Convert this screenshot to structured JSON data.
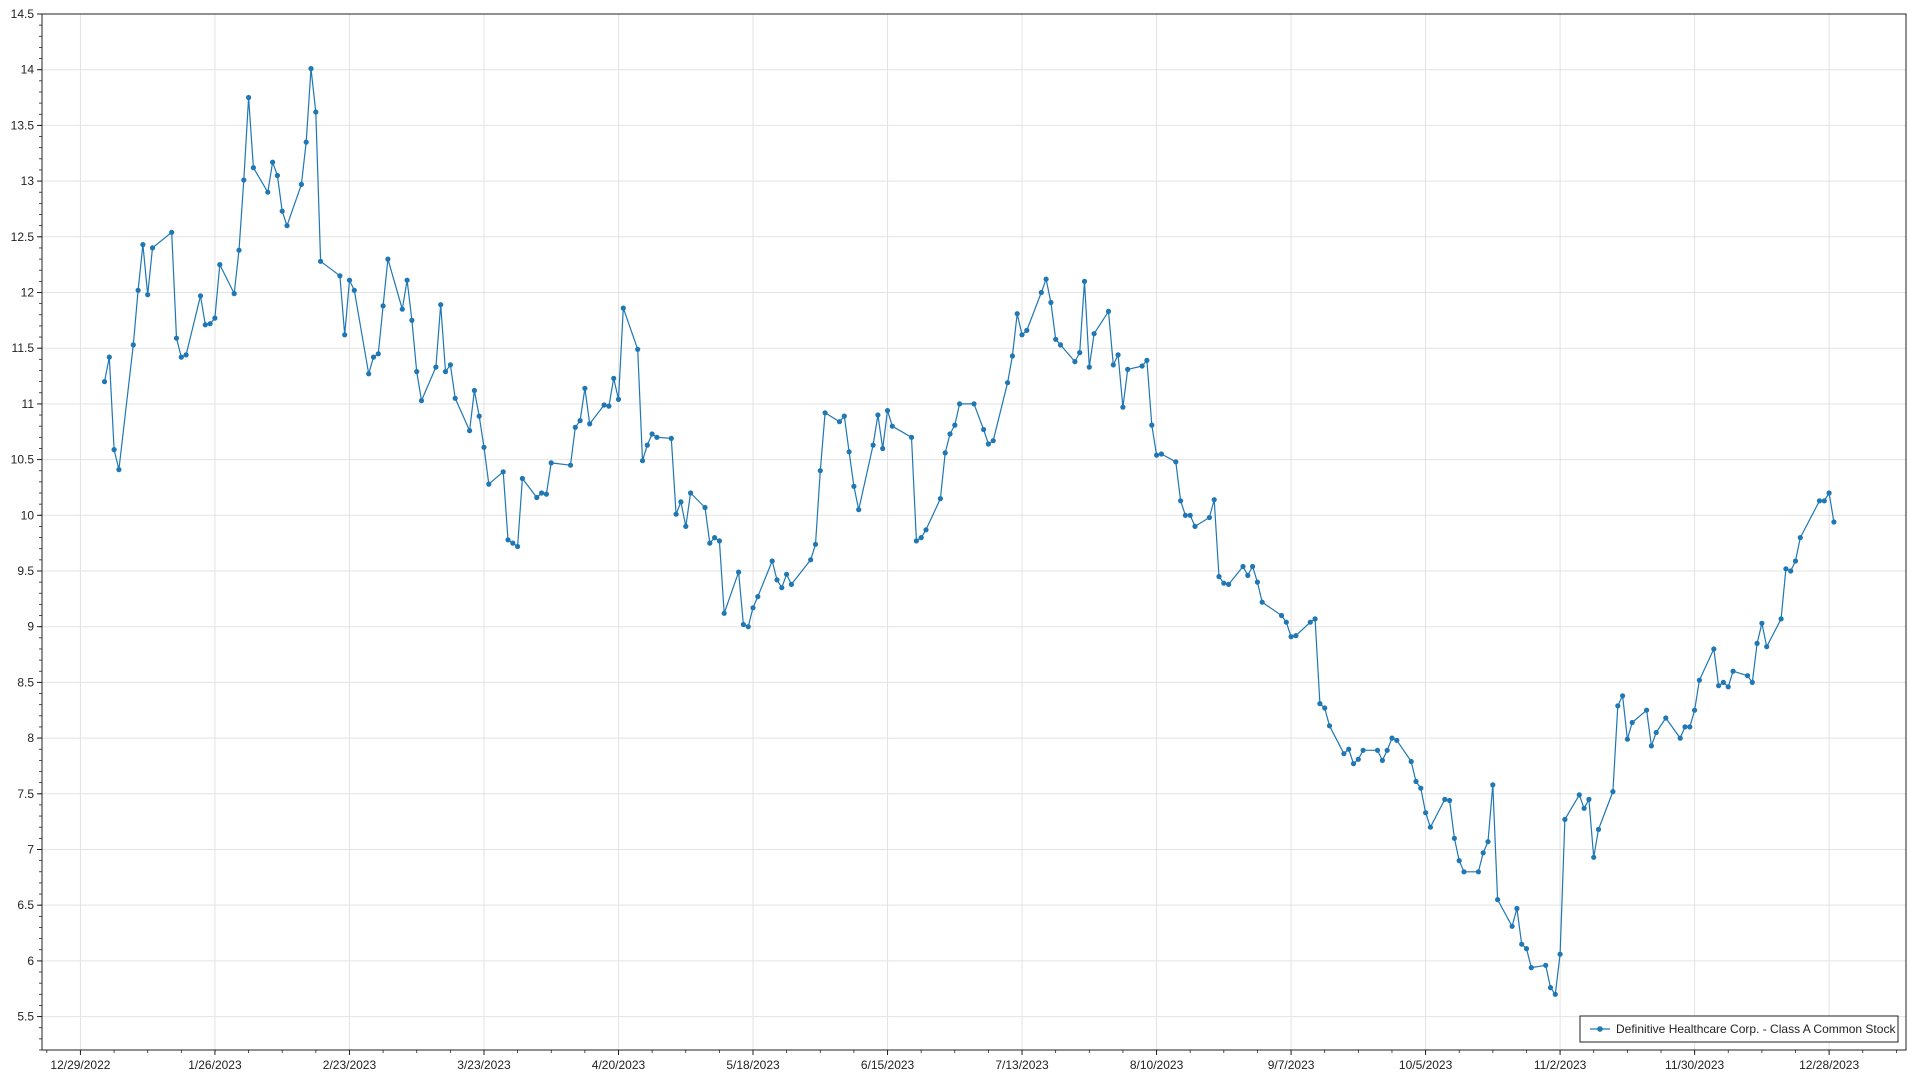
{
  "colors": {
    "series": "#1f77b4",
    "grid": "#e3e3e3",
    "axis": "#222222",
    "background": "#ffffff"
  },
  "chart_data": {
    "type": "line",
    "title": "",
    "xlabel": "",
    "ylabel": "",
    "grid": true,
    "legend_placement": "bottom-right",
    "markers": true,
    "xlim": [
      "2022-12-21",
      "2024-01-13"
    ],
    "ylim": [
      5.2,
      14.5
    ],
    "x_ticks": [
      "2022-12-29",
      "2023-01-26",
      "2023-02-23",
      "2023-03-23",
      "2023-04-20",
      "2023-05-18",
      "2023-06-15",
      "2023-07-13",
      "2023-08-10",
      "2023-09-07",
      "2023-10-05",
      "2023-11-02",
      "2023-11-30",
      "2023-12-28"
    ],
    "x_tick_labels": [
      "12/29/2022",
      "1/26/2023",
      "2/23/2023",
      "3/23/2023",
      "4/20/2023",
      "5/18/2023",
      "6/15/2023",
      "7/13/2023",
      "8/10/2023",
      "9/7/2023",
      "10/5/2023",
      "11/2/2023",
      "11/30/2023",
      "12/28/2023"
    ],
    "y_ticks": [
      5.5,
      6,
      6.5,
      7,
      7.5,
      8,
      8.5,
      9,
      9.5,
      10,
      10.5,
      11,
      11.5,
      12,
      12.5,
      13,
      13.5,
      14,
      14.5
    ],
    "y_tick_labels": [
      "5.5",
      "6",
      "6.5",
      "7",
      "7.5",
      "8",
      "8.5",
      "9",
      "9.5",
      "10",
      "10.5",
      "11",
      "11.5",
      "12",
      "12.5",
      "13",
      "13.5",
      "14",
      "14.5"
    ],
    "series": [
      {
        "name": "Definitive Healthcare Corp. - Class A Common Stock",
        "color": "#1f77b4",
        "points": [
          [
            "2023-01-03",
            11.2
          ],
          [
            "2023-01-04",
            11.42
          ],
          [
            "2023-01-05",
            10.59
          ],
          [
            "2023-01-06",
            10.41
          ],
          [
            "2023-01-09",
            11.53
          ],
          [
            "2023-01-10",
            12.02
          ],
          [
            "2023-01-11",
            12.43
          ],
          [
            "2023-01-12",
            11.98
          ],
          [
            "2023-01-13",
            12.4
          ],
          [
            "2023-01-17",
            12.54
          ],
          [
            "2023-01-18",
            11.59
          ],
          [
            "2023-01-19",
            11.42
          ],
          [
            "2023-01-20",
            11.44
          ],
          [
            "2023-01-23",
            11.97
          ],
          [
            "2023-01-24",
            11.71
          ],
          [
            "2023-01-25",
            11.72
          ],
          [
            "2023-01-26",
            11.77
          ],
          [
            "2023-01-27",
            12.25
          ],
          [
            "2023-01-30",
            11.99
          ],
          [
            "2023-01-31",
            12.38
          ],
          [
            "2023-02-01",
            13.01
          ],
          [
            "2023-02-02",
            13.75
          ],
          [
            "2023-02-03",
            13.12
          ],
          [
            "2023-02-06",
            12.9
          ],
          [
            "2023-02-07",
            13.17
          ],
          [
            "2023-02-08",
            13.05
          ],
          [
            "2023-02-09",
            12.73
          ],
          [
            "2023-02-10",
            12.6
          ],
          [
            "2023-02-13",
            12.97
          ],
          [
            "2023-02-14",
            13.35
          ],
          [
            "2023-02-15",
            14.01
          ],
          [
            "2023-02-16",
            13.62
          ],
          [
            "2023-02-17",
            12.28
          ],
          [
            "2023-02-21",
            12.15
          ],
          [
            "2023-02-22",
            11.62
          ],
          [
            "2023-02-23",
            12.11
          ],
          [
            "2023-02-24",
            12.02
          ],
          [
            "2023-02-27",
            11.27
          ],
          [
            "2023-02-28",
            11.42
          ],
          [
            "2023-03-01",
            11.45
          ],
          [
            "2023-03-02",
            11.88
          ],
          [
            "2023-03-03",
            12.3
          ],
          [
            "2023-03-06",
            11.85
          ],
          [
            "2023-03-07",
            12.11
          ],
          [
            "2023-03-08",
            11.75
          ],
          [
            "2023-03-09",
            11.29
          ],
          [
            "2023-03-10",
            11.03
          ],
          [
            "2023-03-13",
            11.33
          ],
          [
            "2023-03-14",
            11.89
          ],
          [
            "2023-03-15",
            11.29
          ],
          [
            "2023-03-16",
            11.35
          ],
          [
            "2023-03-17",
            11.05
          ],
          [
            "2023-03-20",
            10.76
          ],
          [
            "2023-03-21",
            11.12
          ],
          [
            "2023-03-22",
            10.89
          ],
          [
            "2023-03-23",
            10.61
          ],
          [
            "2023-03-24",
            10.28
          ],
          [
            "2023-03-27",
            10.39
          ],
          [
            "2023-03-28",
            9.78
          ],
          [
            "2023-03-29",
            9.75
          ],
          [
            "2023-03-30",
            9.72
          ],
          [
            "2023-03-31",
            10.33
          ],
          [
            "2023-04-03",
            10.16
          ],
          [
            "2023-04-04",
            10.2
          ],
          [
            "2023-04-05",
            10.19
          ],
          [
            "2023-04-06",
            10.47
          ],
          [
            "2023-04-10",
            10.45
          ],
          [
            "2023-04-11",
            10.79
          ],
          [
            "2023-04-12",
            10.85
          ],
          [
            "2023-04-13",
            11.14
          ],
          [
            "2023-04-14",
            10.82
          ],
          [
            "2023-04-17",
            10.99
          ],
          [
            "2023-04-18",
            10.98
          ],
          [
            "2023-04-19",
            11.23
          ],
          [
            "2023-04-20",
            11.04
          ],
          [
            "2023-04-21",
            11.86
          ],
          [
            "2023-04-24",
            11.49
          ],
          [
            "2023-04-25",
            10.49
          ],
          [
            "2023-04-26",
            10.63
          ],
          [
            "2023-04-27",
            10.73
          ],
          [
            "2023-04-28",
            10.7
          ],
          [
            "2023-05-01",
            10.69
          ],
          [
            "2023-05-02",
            10.01
          ],
          [
            "2023-05-03",
            10.12
          ],
          [
            "2023-05-04",
            9.9
          ],
          [
            "2023-05-05",
            10.2
          ],
          [
            "2023-05-08",
            10.07
          ],
          [
            "2023-05-09",
            9.75
          ],
          [
            "2023-05-10",
            9.8
          ],
          [
            "2023-05-11",
            9.77
          ],
          [
            "2023-05-12",
            9.12
          ],
          [
            "2023-05-15",
            9.49
          ],
          [
            "2023-05-16",
            9.02
          ],
          [
            "2023-05-17",
            9.0
          ],
          [
            "2023-05-18",
            9.17
          ],
          [
            "2023-05-19",
            9.27
          ],
          [
            "2023-05-22",
            9.59
          ],
          [
            "2023-05-23",
            9.42
          ],
          [
            "2023-05-24",
            9.35
          ],
          [
            "2023-05-25",
            9.47
          ],
          [
            "2023-05-26",
            9.38
          ],
          [
            "2023-05-30",
            9.6
          ],
          [
            "2023-05-31",
            9.74
          ],
          [
            "2023-06-01",
            10.4
          ],
          [
            "2023-06-02",
            10.92
          ],
          [
            "2023-06-05",
            10.84
          ],
          [
            "2023-06-06",
            10.89
          ],
          [
            "2023-06-07",
            10.57
          ],
          [
            "2023-06-08",
            10.26
          ],
          [
            "2023-06-09",
            10.05
          ],
          [
            "2023-06-12",
            10.63
          ],
          [
            "2023-06-13",
            10.9
          ],
          [
            "2023-06-14",
            10.6
          ],
          [
            "2023-06-15",
            10.94
          ],
          [
            "2023-06-16",
            10.8
          ],
          [
            "2023-06-20",
            10.7
          ],
          [
            "2023-06-21",
            9.77
          ],
          [
            "2023-06-22",
            9.8
          ],
          [
            "2023-06-23",
            9.87
          ],
          [
            "2023-06-26",
            10.15
          ],
          [
            "2023-06-27",
            10.56
          ],
          [
            "2023-06-28",
            10.73
          ],
          [
            "2023-06-29",
            10.81
          ],
          [
            "2023-06-30",
            11.0
          ],
          [
            "2023-07-03",
            11.0
          ],
          [
            "2023-07-05",
            10.77
          ],
          [
            "2023-07-06",
            10.64
          ],
          [
            "2023-07-07",
            10.67
          ],
          [
            "2023-07-10",
            11.19
          ],
          [
            "2023-07-11",
            11.43
          ],
          [
            "2023-07-12",
            11.81
          ],
          [
            "2023-07-13",
            11.62
          ],
          [
            "2023-07-14",
            11.66
          ],
          [
            "2023-07-17",
            12.0
          ],
          [
            "2023-07-18",
            12.12
          ],
          [
            "2023-07-19",
            11.91
          ],
          [
            "2023-07-20",
            11.58
          ],
          [
            "2023-07-21",
            11.53
          ],
          [
            "2023-07-24",
            11.38
          ],
          [
            "2023-07-25",
            11.46
          ],
          [
            "2023-07-26",
            12.1
          ],
          [
            "2023-07-27",
            11.33
          ],
          [
            "2023-07-28",
            11.63
          ],
          [
            "2023-07-31",
            11.83
          ],
          [
            "2023-08-01",
            11.35
          ],
          [
            "2023-08-02",
            11.44
          ],
          [
            "2023-08-03",
            10.97
          ],
          [
            "2023-08-04",
            11.31
          ],
          [
            "2023-08-07",
            11.34
          ],
          [
            "2023-08-08",
            11.39
          ],
          [
            "2023-08-09",
            10.81
          ],
          [
            "2023-08-10",
            10.54
          ],
          [
            "2023-08-11",
            10.55
          ],
          [
            "2023-08-14",
            10.48
          ],
          [
            "2023-08-15",
            10.13
          ],
          [
            "2023-08-16",
            10.0
          ],
          [
            "2023-08-17",
            10.0
          ],
          [
            "2023-08-18",
            9.9
          ],
          [
            "2023-08-21",
            9.98
          ],
          [
            "2023-08-22",
            10.14
          ],
          [
            "2023-08-23",
            9.45
          ],
          [
            "2023-08-24",
            9.39
          ],
          [
            "2023-08-25",
            9.38
          ],
          [
            "2023-08-28",
            9.54
          ],
          [
            "2023-08-29",
            9.46
          ],
          [
            "2023-08-30",
            9.54
          ],
          [
            "2023-08-31",
            9.4
          ],
          [
            "2023-09-01",
            9.22
          ],
          [
            "2023-09-05",
            9.1
          ],
          [
            "2023-09-06",
            9.04
          ],
          [
            "2023-09-07",
            8.91
          ],
          [
            "2023-09-08",
            8.92
          ],
          [
            "2023-09-11",
            9.04
          ],
          [
            "2023-09-12",
            9.07
          ],
          [
            "2023-09-13",
            8.31
          ],
          [
            "2023-09-14",
            8.27
          ],
          [
            "2023-09-15",
            8.11
          ],
          [
            "2023-09-18",
            7.86
          ],
          [
            "2023-09-19",
            7.9
          ],
          [
            "2023-09-20",
            7.77
          ],
          [
            "2023-09-21",
            7.81
          ],
          [
            "2023-09-22",
            7.89
          ],
          [
            "2023-09-25",
            7.89
          ],
          [
            "2023-09-26",
            7.8
          ],
          [
            "2023-09-27",
            7.89
          ],
          [
            "2023-09-28",
            8.0
          ],
          [
            "2023-09-29",
            7.98
          ],
          [
            "2023-10-02",
            7.79
          ],
          [
            "2023-10-03",
            7.61
          ],
          [
            "2023-10-04",
            7.55
          ],
          [
            "2023-10-05",
            7.33
          ],
          [
            "2023-10-06",
            7.2
          ],
          [
            "2023-10-09",
            7.45
          ],
          [
            "2023-10-10",
            7.44
          ],
          [
            "2023-10-11",
            7.1
          ],
          [
            "2023-10-12",
            6.9
          ],
          [
            "2023-10-13",
            6.8
          ],
          [
            "2023-10-16",
            6.8
          ],
          [
            "2023-10-17",
            6.97
          ],
          [
            "2023-10-18",
            7.07
          ],
          [
            "2023-10-19",
            7.58
          ],
          [
            "2023-10-20",
            6.55
          ],
          [
            "2023-10-23",
            6.31
          ],
          [
            "2023-10-24",
            6.47
          ],
          [
            "2023-10-25",
            6.15
          ],
          [
            "2023-10-26",
            6.11
          ],
          [
            "2023-10-27",
            5.94
          ],
          [
            "2023-10-30",
            5.96
          ],
          [
            "2023-10-31",
            5.76
          ],
          [
            "2023-11-01",
            5.7
          ],
          [
            "2023-11-02",
            6.06
          ],
          [
            "2023-11-03",
            7.27
          ],
          [
            "2023-11-06",
            7.49
          ],
          [
            "2023-11-07",
            7.37
          ],
          [
            "2023-11-08",
            7.45
          ],
          [
            "2023-11-09",
            6.93
          ],
          [
            "2023-11-10",
            7.18
          ],
          [
            "2023-11-13",
            7.52
          ],
          [
            "2023-11-14",
            8.29
          ],
          [
            "2023-11-15",
            8.38
          ],
          [
            "2023-11-16",
            7.99
          ],
          [
            "2023-11-17",
            8.14
          ],
          [
            "2023-11-20",
            8.25
          ],
          [
            "2023-11-21",
            7.93
          ],
          [
            "2023-11-22",
            8.05
          ],
          [
            "2023-11-24",
            8.18
          ],
          [
            "2023-11-27",
            8.0
          ],
          [
            "2023-11-28",
            8.1
          ],
          [
            "2023-11-29",
            8.1
          ],
          [
            "2023-11-30",
            8.25
          ],
          [
            "2023-12-01",
            8.52
          ],
          [
            "2023-12-04",
            8.8
          ],
          [
            "2023-12-05",
            8.47
          ],
          [
            "2023-12-06",
            8.5
          ],
          [
            "2023-12-07",
            8.46
          ],
          [
            "2023-12-08",
            8.6
          ],
          [
            "2023-12-11",
            8.56
          ],
          [
            "2023-12-12",
            8.5
          ],
          [
            "2023-12-13",
            8.85
          ],
          [
            "2023-12-14",
            9.03
          ],
          [
            "2023-12-15",
            8.82
          ],
          [
            "2023-12-18",
            9.07
          ],
          [
            "2023-12-19",
            9.52
          ],
          [
            "2023-12-20",
            9.5
          ],
          [
            "2023-12-21",
            9.59
          ],
          [
            "2023-12-22",
            9.8
          ],
          [
            "2023-12-26",
            10.13
          ],
          [
            "2023-12-27",
            10.13
          ],
          [
            "2023-12-28",
            10.2
          ],
          [
            "2023-12-29",
            9.94
          ]
        ]
      }
    ]
  }
}
